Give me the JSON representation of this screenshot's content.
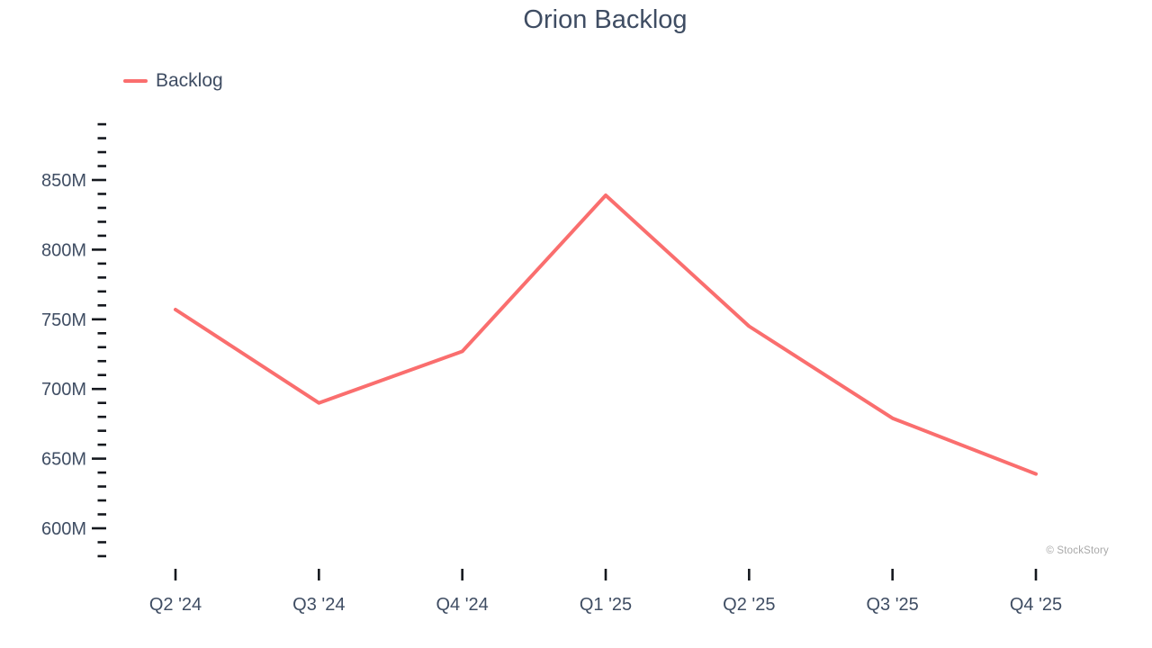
{
  "title": "Orion Backlog",
  "legend": {
    "label": "Backlog"
  },
  "watermark": "© StockStory",
  "colors": {
    "line": "#fa6e6e",
    "text": "#3f4d63",
    "tick": "#15181e",
    "watermark": "#a9a9a9",
    "background": "#ffffff"
  },
  "chart_data": {
    "type": "line",
    "title": "Orion Backlog",
    "categories": [
      "Q2 '24",
      "Q3 '24",
      "Q4 '24",
      "Q1 '25",
      "Q2 '25",
      "Q3 '25",
      "Q4 '25"
    ],
    "series": [
      {
        "name": "Backlog",
        "values": [
          757,
          690,
          727,
          839,
          745,
          679,
          639
        ]
      }
    ],
    "unit": "M",
    "value_scale": "millions",
    "xlabel": "",
    "ylabel": "",
    "ylim": [
      580,
      890
    ],
    "y_major_ticks": [
      850,
      800,
      750,
      700,
      650,
      600
    ],
    "y_minor_step": 10,
    "y_axis_top": 890,
    "y_axis_bottom": 580,
    "grid": false,
    "legend_position": "top-left"
  }
}
